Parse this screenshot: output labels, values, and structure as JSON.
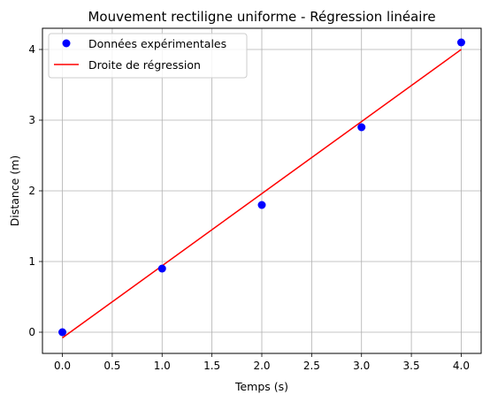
{
  "chart_data": {
    "type": "scatter",
    "title": "Mouvement rectiligne uniforme - Régression linéaire",
    "xlabel": "Temps (s)",
    "ylabel": "Distance (m)",
    "xlim": [
      -0.2,
      4.2
    ],
    "ylim": [
      -0.3,
      4.3
    ],
    "xticks": [
      0.0,
      0.5,
      1.0,
      1.5,
      2.0,
      2.5,
      3.0,
      3.5,
      4.0
    ],
    "xtick_labels": [
      "0.0",
      "0.5",
      "1.0",
      "1.5",
      "2.0",
      "2.5",
      "3.0",
      "3.5",
      "4.0"
    ],
    "yticks": [
      0,
      1,
      2,
      3,
      4
    ],
    "ytick_labels": [
      "0",
      "1",
      "2",
      "3",
      "4"
    ],
    "grid": true,
    "legend_position": "top-left",
    "series": [
      {
        "name": "Données expérimentales",
        "kind": "scatter",
        "color": "#0000ff",
        "x": [
          0,
          1,
          2,
          3,
          4
        ],
        "y": [
          0.0,
          0.9,
          1.8,
          2.9,
          4.1
        ]
      },
      {
        "name": "Droite de régression",
        "kind": "line",
        "color": "#ff0000",
        "x": [
          0,
          4
        ],
        "y": [
          -0.08,
          4.0
        ]
      }
    ]
  }
}
